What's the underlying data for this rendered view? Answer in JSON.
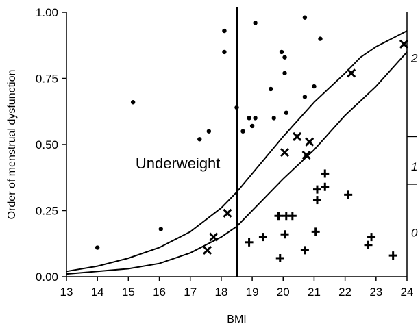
{
  "chart_data": {
    "type": "scatter",
    "title": "",
    "xlabel": "BMI",
    "ylabel": "Order of menstrual dysfunction",
    "xlim": [
      13,
      24
    ],
    "ylim": [
      0,
      1
    ],
    "x_ticks": [
      13,
      14,
      15,
      16,
      17,
      18,
      19,
      20,
      21,
      22,
      23,
      24
    ],
    "y_ticks": [
      0.0,
      0.25,
      0.5,
      0.75,
      1.0
    ],
    "y_tick_labels": [
      "0.00",
      "0.25",
      "0.50",
      "0.75",
      "1.00"
    ],
    "right_axis_labels": [
      {
        "text": "2",
        "y": 0.83
      },
      {
        "text": "1",
        "y": 0.42
      },
      {
        "text": "0",
        "y": 0.17
      }
    ],
    "right_axis_ticks": [
      0.53,
      0.35
    ],
    "grid": false,
    "vertical_line": {
      "x": 18.5
    },
    "annotation": {
      "text": "Underweight",
      "x": 16.6,
      "y": 0.43
    },
    "colors": {
      "marks": "#000000",
      "background": "#ffffff"
    },
    "series": [
      {
        "marker": "dot",
        "points": [
          [
            14.0,
            0.11
          ],
          [
            15.15,
            0.66
          ],
          [
            16.05,
            0.18
          ],
          [
            17.3,
            0.52
          ],
          [
            17.6,
            0.55
          ],
          [
            18.1,
            0.93
          ],
          [
            18.1,
            0.85
          ],
          [
            18.5,
            0.64
          ],
          [
            18.7,
            0.55
          ],
          [
            18.9,
            0.6
          ],
          [
            19.0,
            0.57
          ],
          [
            19.1,
            0.6
          ],
          [
            19.1,
            0.96
          ],
          [
            19.6,
            0.71
          ],
          [
            19.7,
            0.6
          ],
          [
            19.95,
            0.85
          ],
          [
            20.05,
            0.83
          ],
          [
            20.05,
            0.77
          ],
          [
            20.1,
            0.62
          ],
          [
            20.7,
            0.98
          ],
          [
            20.7,
            0.68
          ],
          [
            21.0,
            0.72
          ],
          [
            21.2,
            0.9
          ]
        ]
      },
      {
        "marker": "x",
        "points": [
          [
            17.55,
            0.1
          ],
          [
            17.75,
            0.15
          ],
          [
            18.2,
            0.24
          ],
          [
            20.05,
            0.47
          ],
          [
            20.45,
            0.53
          ],
          [
            20.75,
            0.46
          ],
          [
            20.85,
            0.51
          ],
          [
            22.2,
            0.77
          ],
          [
            23.9,
            0.88
          ]
        ]
      },
      {
        "marker": "plus",
        "points": [
          [
            18.9,
            0.13
          ],
          [
            19.35,
            0.15
          ],
          [
            19.9,
            0.07
          ],
          [
            19.85,
            0.23
          ],
          [
            20.1,
            0.23
          ],
          [
            20.3,
            0.23
          ],
          [
            20.05,
            0.16
          ],
          [
            20.7,
            0.1
          ],
          [
            21.05,
            0.17
          ],
          [
            21.1,
            0.29
          ],
          [
            21.1,
            0.33
          ],
          [
            21.35,
            0.39
          ],
          [
            21.35,
            0.34
          ],
          [
            22.1,
            0.31
          ],
          [
            22.75,
            0.12
          ],
          [
            22.85,
            0.15
          ],
          [
            23.55,
            0.08
          ]
        ]
      }
    ],
    "curves": [
      {
        "points": [
          [
            13,
            0.02
          ],
          [
            14,
            0.04
          ],
          [
            15,
            0.07
          ],
          [
            16,
            0.11
          ],
          [
            17,
            0.17
          ],
          [
            18,
            0.26
          ],
          [
            18.5,
            0.32
          ],
          [
            19,
            0.39
          ],
          [
            20,
            0.53
          ],
          [
            21,
            0.66
          ],
          [
            22,
            0.77
          ],
          [
            22.5,
            0.83
          ],
          [
            23,
            0.87
          ],
          [
            24,
            0.93
          ]
        ]
      },
      {
        "points": [
          [
            13,
            0.01
          ],
          [
            14,
            0.02
          ],
          [
            15,
            0.03
          ],
          [
            16,
            0.05
          ],
          [
            17,
            0.09
          ],
          [
            18,
            0.15
          ],
          [
            18.5,
            0.19
          ],
          [
            19,
            0.25
          ],
          [
            20,
            0.37
          ],
          [
            21,
            0.48
          ],
          [
            22,
            0.61
          ],
          [
            23,
            0.72
          ],
          [
            24,
            0.85
          ]
        ]
      }
    ]
  }
}
